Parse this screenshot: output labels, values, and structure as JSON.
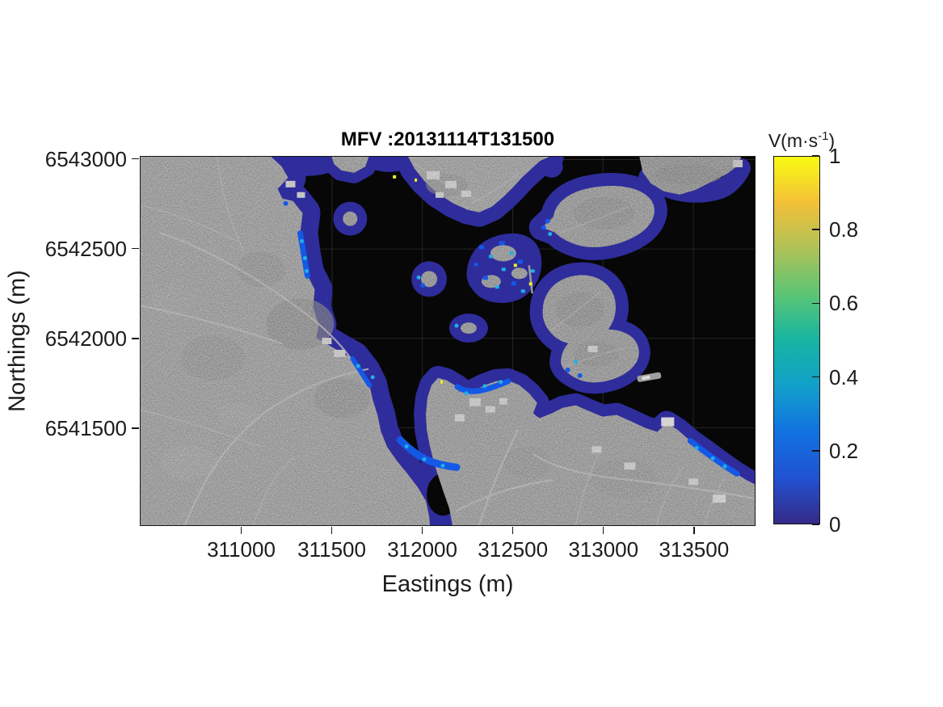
{
  "title": {
    "text": "MFV :20131114T131500"
  },
  "axes": {
    "xlabel": "Eastings (m)",
    "ylabel": "Northings (m)",
    "x_tick_labels": [
      "311000",
      "311500",
      "312000",
      "312500",
      "313000",
      "313500"
    ],
    "y_tick_labels": [
      "6543000",
      "6542500",
      "6542000",
      "6541500"
    ]
  },
  "colorbar": {
    "title_prefix": "V(m·s",
    "title_exponent": "-1",
    "title_suffix": ")",
    "tick_labels": [
      "0",
      "0.2",
      "0.4",
      "0.6",
      "0.8",
      "1"
    ],
    "gradient_bottom_to_top": [
      "#352a87",
      "#2152d2",
      "#1172e0",
      "#12a0ca",
      "#16b5a2",
      "#5bc574",
      "#b0c258",
      "#f3c037",
      "#f9fb13"
    ]
  },
  "chart_data": {
    "type": "heatmap",
    "title": "MFV :20131114T131500",
    "xlabel": "Eastings (m)",
    "ylabel": "Northings (m)",
    "x_ticks": [
      311000,
      311500,
      312000,
      312500,
      313000,
      313500
    ],
    "y_ticks": [
      6543000,
      6542500,
      6542000,
      6541500
    ],
    "xlim": [
      310440,
      313840
    ],
    "ylim": [
      6540955,
      6543016
    ],
    "grid": true,
    "colorbar": {
      "label": "V(m·s⁻¹)",
      "min": 0,
      "max": 1,
      "ticks": [
        0,
        0.2,
        0.4,
        0.6,
        0.8,
        1
      ],
      "colormap": "parula"
    },
    "background_layer": "grayscale aerial image of coastal town; open water rendered near-black",
    "overlay": "mean flow velocity magnitude bands along all shorelines and around islands, mostly 0-0.3 m/s (dark blue), local patches 0.3-0.6 m/s (bright blue/cyan), isolated specks near 1 m/s (yellow)"
  },
  "map_colors": {
    "water": "#070707",
    "land": "#787878",
    "velocity_low": "#2f2c9c",
    "velocity_mid": "#1459e6",
    "velocity_high": "#1fb0e8",
    "velocity_peak": "#f2ef25"
  }
}
